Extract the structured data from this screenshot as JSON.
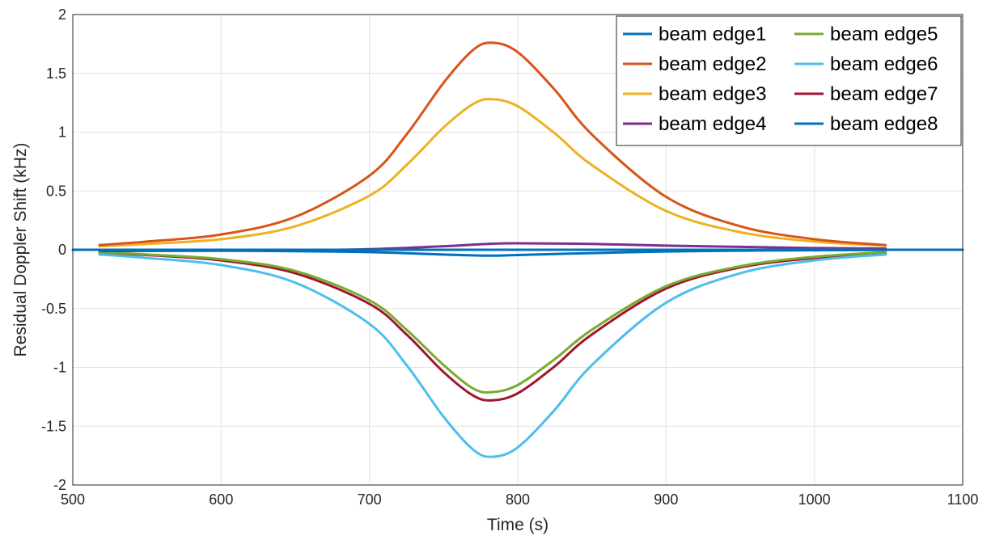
{
  "chart_data": {
    "type": "line",
    "xlabel": "Time (s)",
    "ylabel": "Residual Doppler Shift (kHz)",
    "xlim": [
      500,
      1100
    ],
    "ylim": [
      -2,
      2
    ],
    "xticks": [
      500,
      600,
      700,
      800,
      900,
      1000,
      1100
    ],
    "yticks": [
      -2,
      -1.5,
      -1,
      -0.5,
      0,
      0.5,
      1,
      1.5,
      2
    ],
    "grid": true,
    "legend_position": "top-right",
    "legend_columns": 2,
    "series": [
      {
        "name": "beam edge1",
        "color": "#0072BD",
        "x": [
          518,
          600,
          650,
          700,
          750,
          780,
          800,
          850,
          900,
          950,
          1000,
          1048
        ],
        "y": [
          -0.004,
          -0.008,
          -0.012,
          -0.02,
          -0.04,
          -0.05,
          -0.045,
          -0.028,
          -0.015,
          -0.008,
          -0.004,
          -0.002
        ]
      },
      {
        "name": "beam edge2",
        "color": "#D95319",
        "x": [
          518,
          550,
          600,
          650,
          700,
          725,
          750,
          770,
          783,
          800,
          825,
          850,
          900,
          950,
          1000,
          1048
        ],
        "y": [
          0.04,
          0.07,
          0.13,
          0.28,
          0.63,
          0.98,
          1.42,
          1.7,
          1.76,
          1.68,
          1.36,
          0.98,
          0.45,
          0.2,
          0.09,
          0.04
        ]
      },
      {
        "name": "beam edge3",
        "color": "#EDB120",
        "x": [
          518,
          550,
          600,
          650,
          700,
          725,
          750,
          770,
          783,
          800,
          825,
          850,
          900,
          950,
          1000,
          1048
        ],
        "y": [
          0.03,
          0.05,
          0.09,
          0.2,
          0.46,
          0.72,
          1.04,
          1.24,
          1.28,
          1.22,
          0.99,
          0.72,
          0.33,
          0.15,
          0.07,
          0.035
        ]
      },
      {
        "name": "beam edge4",
        "color": "#7E2F8E",
        "x": [
          518,
          600,
          650,
          700,
          750,
          780,
          800,
          850,
          900,
          950,
          1000,
          1048
        ],
        "y": [
          -0.01,
          -0.008,
          -0.004,
          0.005,
          0.03,
          0.05,
          0.055,
          0.05,
          0.035,
          0.025,
          0.015,
          0.01
        ]
      },
      {
        "name": "beam edge5",
        "color": "#77AC30",
        "x": [
          518,
          550,
          600,
          650,
          700,
          725,
          750,
          770,
          783,
          800,
          825,
          850,
          900,
          950,
          1000,
          1048
        ],
        "y": [
          -0.02,
          -0.04,
          -0.08,
          -0.18,
          -0.43,
          -0.68,
          -0.98,
          -1.18,
          -1.21,
          -1.15,
          -0.93,
          -0.68,
          -0.31,
          -0.14,
          -0.06,
          -0.02
        ]
      },
      {
        "name": "beam edge6",
        "color": "#4DBEEE",
        "x": [
          518,
          550,
          600,
          650,
          700,
          725,
          750,
          770,
          783,
          800,
          825,
          850,
          900,
          950,
          1000,
          1048
        ],
        "y": [
          -0.04,
          -0.07,
          -0.13,
          -0.28,
          -0.63,
          -0.98,
          -1.42,
          -1.7,
          -1.76,
          -1.68,
          -1.36,
          -0.98,
          -0.45,
          -0.2,
          -0.09,
          -0.04
        ]
      },
      {
        "name": "beam edge7",
        "color": "#A2142F",
        "x": [
          518,
          550,
          600,
          650,
          700,
          725,
          750,
          770,
          783,
          800,
          825,
          850,
          900,
          950,
          1000,
          1048
        ],
        "y": [
          -0.025,
          -0.045,
          -0.09,
          -0.2,
          -0.46,
          -0.72,
          -1.04,
          -1.24,
          -1.28,
          -1.22,
          -0.99,
          -0.72,
          -0.33,
          -0.15,
          -0.07,
          -0.03
        ]
      },
      {
        "name": "beam edge8",
        "color": "#0072BD",
        "x": [
          500,
          1100
        ],
        "y": [
          0,
          0
        ]
      }
    ]
  }
}
